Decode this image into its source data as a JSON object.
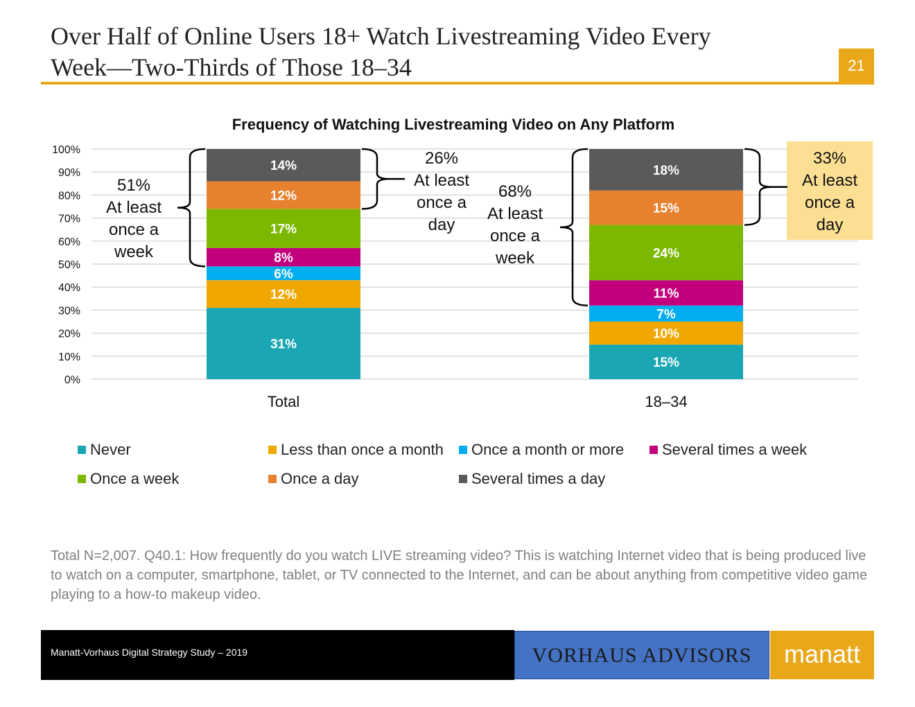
{
  "header": {
    "title_line1": "Over Half of Online Users 18+ Watch Livestreaming Video Every",
    "title_line2": "Week—Two-Thirds of Those 18–34",
    "page_number": "21",
    "accent_color": "#E8A81A"
  },
  "chart_data": {
    "type": "bar",
    "stacked": true,
    "title": "Frequency of Watching Livestreaming Video on Any Platform",
    "categories": [
      "Total",
      "18–34"
    ],
    "ylim": [
      0,
      100
    ],
    "y_ticks": [
      "0%",
      "10%",
      "20%",
      "30%",
      "40%",
      "50%",
      "60%",
      "70%",
      "80%",
      "90%",
      "100%"
    ],
    "grid": true,
    "series": [
      {
        "name": "Never",
        "color": "#1AA7B3",
        "values": [
          31,
          15
        ]
      },
      {
        "name": "Less than once a month",
        "color": "#F0A800",
        "values": [
          12,
          10
        ]
      },
      {
        "name": "Once a month or more",
        "color": "#00AEEF",
        "values": [
          6,
          7
        ]
      },
      {
        "name": "Several times a week",
        "color": "#C2007E",
        "values": [
          8,
          11
        ]
      },
      {
        "name": "Once a week",
        "color": "#7CB800",
        "values": [
          17,
          24
        ]
      },
      {
        "name": "Once a day",
        "color": "#E8812E",
        "values": [
          12,
          15
        ]
      },
      {
        "name": "Several times a day",
        "color": "#595A5C",
        "values": [
          14,
          18
        ]
      }
    ],
    "annotations": [
      {
        "category": "Total",
        "side": "left",
        "from_series": 3,
        "to_series": 6,
        "pct": "51%",
        "lines": [
          "At least",
          "once a",
          "week"
        ],
        "highlight": false
      },
      {
        "category": "Total",
        "side": "right",
        "from_series": 5,
        "to_series": 6,
        "pct": "26%",
        "lines": [
          "At least",
          "once a",
          "day"
        ],
        "highlight": false
      },
      {
        "category": "18–34",
        "side": "left",
        "from_series": 3,
        "to_series": 6,
        "pct": "68%",
        "lines": [
          "At least",
          "once a",
          "week"
        ],
        "highlight": false
      },
      {
        "category": "18–34",
        "side": "right",
        "from_series": 5,
        "to_series": 6,
        "pct": "33%",
        "lines": [
          "At least",
          "once a",
          "day"
        ],
        "highlight": true,
        "highlight_color": "#FDDF94"
      }
    ],
    "legend_position": "bottom"
  },
  "legend": {
    "items": [
      {
        "label": "Never",
        "color": "#1AA7B3"
      },
      {
        "label": "Less than once a month",
        "color": "#F0A800"
      },
      {
        "label": "Once a month or more",
        "color": "#00AEEF"
      },
      {
        "label": "Several times a week",
        "color": "#C2007E"
      },
      {
        "label": "Once a week",
        "color": "#7CB800"
      },
      {
        "label": "Once a day",
        "color": "#E8812E"
      },
      {
        "label": "Several times a day",
        "color": "#595A5C"
      }
    ]
  },
  "note": "Total N=2,007. Q40.1: How frequently do you watch LIVE streaming video? This is watching Internet video that is being produced live to watch on a computer, smartphone, tablet, or TV connected to the Internet, and can be about anything from competitive video game playing to a how-to makeup video.",
  "footer": {
    "study": "Manatt-Vorhaus Digital Strategy Study – 2019",
    "vorhaus_logo": "VORHAUS ADVISORS",
    "manatt_logo": "manatt",
    "vorhaus_color": "#4472C4"
  }
}
